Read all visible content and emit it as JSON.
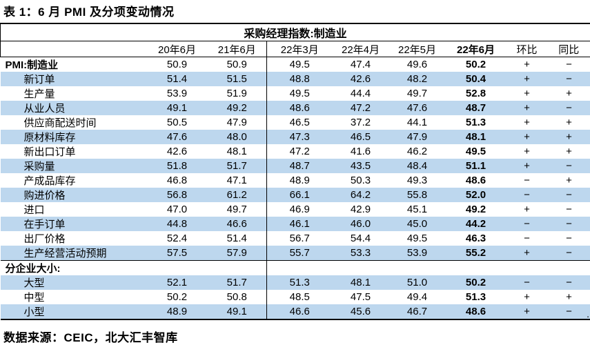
{
  "title": "表 1：6 月 PMI 及分项变动情况",
  "source": "数据来源：CEIC，北大汇丰智库",
  "stray_period": ".",
  "colors": {
    "row_shade": "#BDD7EE",
    "border": "#000000",
    "text": "#000000"
  },
  "table": {
    "group_header": "采购经理指数:制造业",
    "columns": [
      "20年6月",
      "21年6月",
      "22年3月",
      "22年4月",
      "22年5月",
      "22年6月",
      "环比",
      "同比"
    ],
    "emphasis_column_index": 5,
    "divider_column_index": 2,
    "rows": [
      {
        "label": "PMI:制造业",
        "bold": true,
        "indent": false,
        "shaded": false,
        "values": [
          "50.9",
          "50.9",
          "49.5",
          "47.4",
          "49.6",
          "50.2",
          "+",
          "−"
        ]
      },
      {
        "label": "新订单",
        "bold": false,
        "indent": true,
        "shaded": true,
        "values": [
          "51.4",
          "51.5",
          "48.8",
          "42.6",
          "48.2",
          "50.4",
          "+",
          "−"
        ]
      },
      {
        "label": "生产量",
        "bold": false,
        "indent": true,
        "shaded": false,
        "values": [
          "53.9",
          "51.9",
          "49.5",
          "44.4",
          "49.7",
          "52.8",
          "+",
          "+"
        ]
      },
      {
        "label": "从业人员",
        "bold": false,
        "indent": true,
        "shaded": true,
        "values": [
          "49.1",
          "49.2",
          "48.6",
          "47.2",
          "47.6",
          "48.7",
          "+",
          "−"
        ]
      },
      {
        "label": "供应商配送时间",
        "bold": false,
        "indent": true,
        "shaded": false,
        "values": [
          "50.5",
          "47.9",
          "46.5",
          "37.2",
          "44.1",
          "51.3",
          "+",
          "+"
        ]
      },
      {
        "label": "原材料库存",
        "bold": false,
        "indent": true,
        "shaded": true,
        "values": [
          "47.6",
          "48.0",
          "47.3",
          "46.5",
          "47.9",
          "48.1",
          "+",
          "+"
        ]
      },
      {
        "label": "新出口订单",
        "bold": false,
        "indent": true,
        "shaded": false,
        "values": [
          "42.6",
          "48.1",
          "47.2",
          "41.6",
          "46.2",
          "49.5",
          "+",
          "+"
        ]
      },
      {
        "label": "采购量",
        "bold": false,
        "indent": true,
        "shaded": true,
        "values": [
          "51.8",
          "51.7",
          "48.7",
          "43.5",
          "48.4",
          "51.1",
          "+",
          "−"
        ]
      },
      {
        "label": "产成品库存",
        "bold": false,
        "indent": true,
        "shaded": false,
        "values": [
          "46.8",
          "47.1",
          "48.9",
          "50.3",
          "49.3",
          "48.6",
          "−",
          "+"
        ]
      },
      {
        "label": "购进价格",
        "bold": false,
        "indent": true,
        "shaded": true,
        "values": [
          "56.8",
          "61.2",
          "66.1",
          "64.2",
          "55.8",
          "52.0",
          "−",
          "−"
        ]
      },
      {
        "label": "进口",
        "bold": false,
        "indent": true,
        "shaded": false,
        "values": [
          "47.0",
          "49.7",
          "46.9",
          "42.9",
          "45.1",
          "49.2",
          "+",
          "−"
        ]
      },
      {
        "label": "在手订单",
        "bold": false,
        "indent": true,
        "shaded": true,
        "values": [
          "44.8",
          "46.6",
          "46.1",
          "46.0",
          "45.0",
          "44.2",
          "−",
          "−"
        ]
      },
      {
        "label": "出厂价格",
        "bold": false,
        "indent": true,
        "shaded": false,
        "values": [
          "52.4",
          "51.4",
          "56.7",
          "54.4",
          "49.5",
          "46.3",
          "−",
          "−"
        ]
      },
      {
        "label": "生产经营活动预期",
        "bold": false,
        "indent": true,
        "shaded": true,
        "divider_below": true,
        "values": [
          "57.5",
          "57.9",
          "55.7",
          "53.3",
          "53.9",
          "55.2",
          "+",
          "−"
        ]
      },
      {
        "label": "分企业大小:",
        "bold": true,
        "indent": false,
        "shaded": false,
        "values": [
          "",
          "",
          "",
          "",
          "",
          "",
          "",
          ""
        ]
      },
      {
        "label": "大型",
        "bold": false,
        "indent": true,
        "shaded": true,
        "values": [
          "52.1",
          "51.7",
          "51.3",
          "48.1",
          "51.0",
          "50.2",
          "−",
          "−"
        ]
      },
      {
        "label": "中型",
        "bold": false,
        "indent": true,
        "shaded": false,
        "values": [
          "50.2",
          "50.8",
          "48.5",
          "47.5",
          "49.4",
          "51.3",
          "+",
          "+"
        ]
      },
      {
        "label": "小型",
        "bold": false,
        "indent": true,
        "shaded": true,
        "values": [
          "48.9",
          "49.1",
          "46.6",
          "45.6",
          "46.7",
          "48.6",
          "+",
          "−"
        ]
      }
    ]
  }
}
